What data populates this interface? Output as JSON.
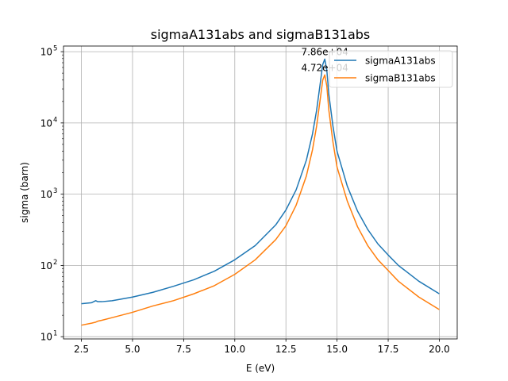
{
  "chart_data": {
    "type": "line",
    "title": "sigmaA131abs and sigmaB131abs",
    "xlabel": "E (eV)",
    "ylabel": "sigma (barn)",
    "xlim": [
      1.625,
      20.875
    ],
    "ylim": [
      9.3,
      120000
    ],
    "yscale": "log",
    "grid": true,
    "legend_position": "top-right",
    "x_ticks": [
      {
        "value": 2.5,
        "label": "2.5"
      },
      {
        "value": 5.0,
        "label": "5.0"
      },
      {
        "value": 7.5,
        "label": "7.5"
      },
      {
        "value": 10.0,
        "label": "10.0"
      },
      {
        "value": 12.5,
        "label": "12.5"
      },
      {
        "value": 15.0,
        "label": "15.0"
      },
      {
        "value": 17.5,
        "label": "17.5"
      },
      {
        "value": 20.0,
        "label": "20.0"
      }
    ],
    "y_ticks": [
      {
        "value": 10,
        "base": "10",
        "exp": "1"
      },
      {
        "value": 100,
        "base": "10",
        "exp": "2"
      },
      {
        "value": 1000,
        "base": "10",
        "exp": "3"
      },
      {
        "value": 10000,
        "base": "10",
        "exp": "4"
      },
      {
        "value": 100000,
        "base": "10",
        "exp": "5"
      }
    ],
    "series": [
      {
        "name": "sigmaA131abs",
        "color": "#1f77b4",
        "x": [
          2.5,
          3.0,
          3.1,
          3.2,
          3.3,
          3.5,
          4.0,
          5.0,
          6.0,
          7.0,
          8.0,
          9.0,
          10.0,
          11.0,
          12.0,
          12.5,
          13.0,
          13.5,
          13.8,
          14.0,
          14.2,
          14.3,
          14.4,
          14.5,
          14.6,
          14.8,
          15.0,
          15.5,
          16.0,
          16.5,
          17.0,
          17.5,
          18.0,
          19.0,
          20.0
        ],
        "y": [
          29,
          30,
          31,
          32,
          31,
          31,
          32,
          36,
          42,
          51,
          63,
          83,
          120,
          190,
          370,
          600,
          1150,
          3000,
          7000,
          15000,
          40000,
          66000,
          78600,
          55000,
          25000,
          9000,
          4000,
          1300,
          580,
          320,
          200,
          140,
          100,
          60,
          40
        ]
      },
      {
        "name": "sigmaB131abs",
        "color": "#ff7f0e",
        "x": [
          2.5,
          3.0,
          3.2,
          3.3,
          3.5,
          4.0,
          5.0,
          6.0,
          7.0,
          8.0,
          9.0,
          10.0,
          11.0,
          12.0,
          12.5,
          13.0,
          13.5,
          13.8,
          14.0,
          14.2,
          14.3,
          14.4,
          14.5,
          14.6,
          14.8,
          15.0,
          15.5,
          16.0,
          16.5,
          17.0,
          17.5,
          18.0,
          19.0,
          20.0
        ],
        "y": [
          14.5,
          15.5,
          16,
          16.5,
          17,
          18.5,
          22,
          27,
          32,
          40,
          52,
          75,
          120,
          230,
          360,
          700,
          1800,
          4200,
          9000,
          24000,
          40000,
          47200,
          33000,
          15000,
          5400,
          2400,
          800,
          350,
          190,
          120,
          85,
          60,
          36,
          24
        ]
      }
    ],
    "annotations": [
      {
        "text": "7.86e+04",
        "x": 14.4,
        "y": 78600
      },
      {
        "text": "4.72e+04",
        "x": 14.4,
        "y": 47200
      }
    ]
  }
}
